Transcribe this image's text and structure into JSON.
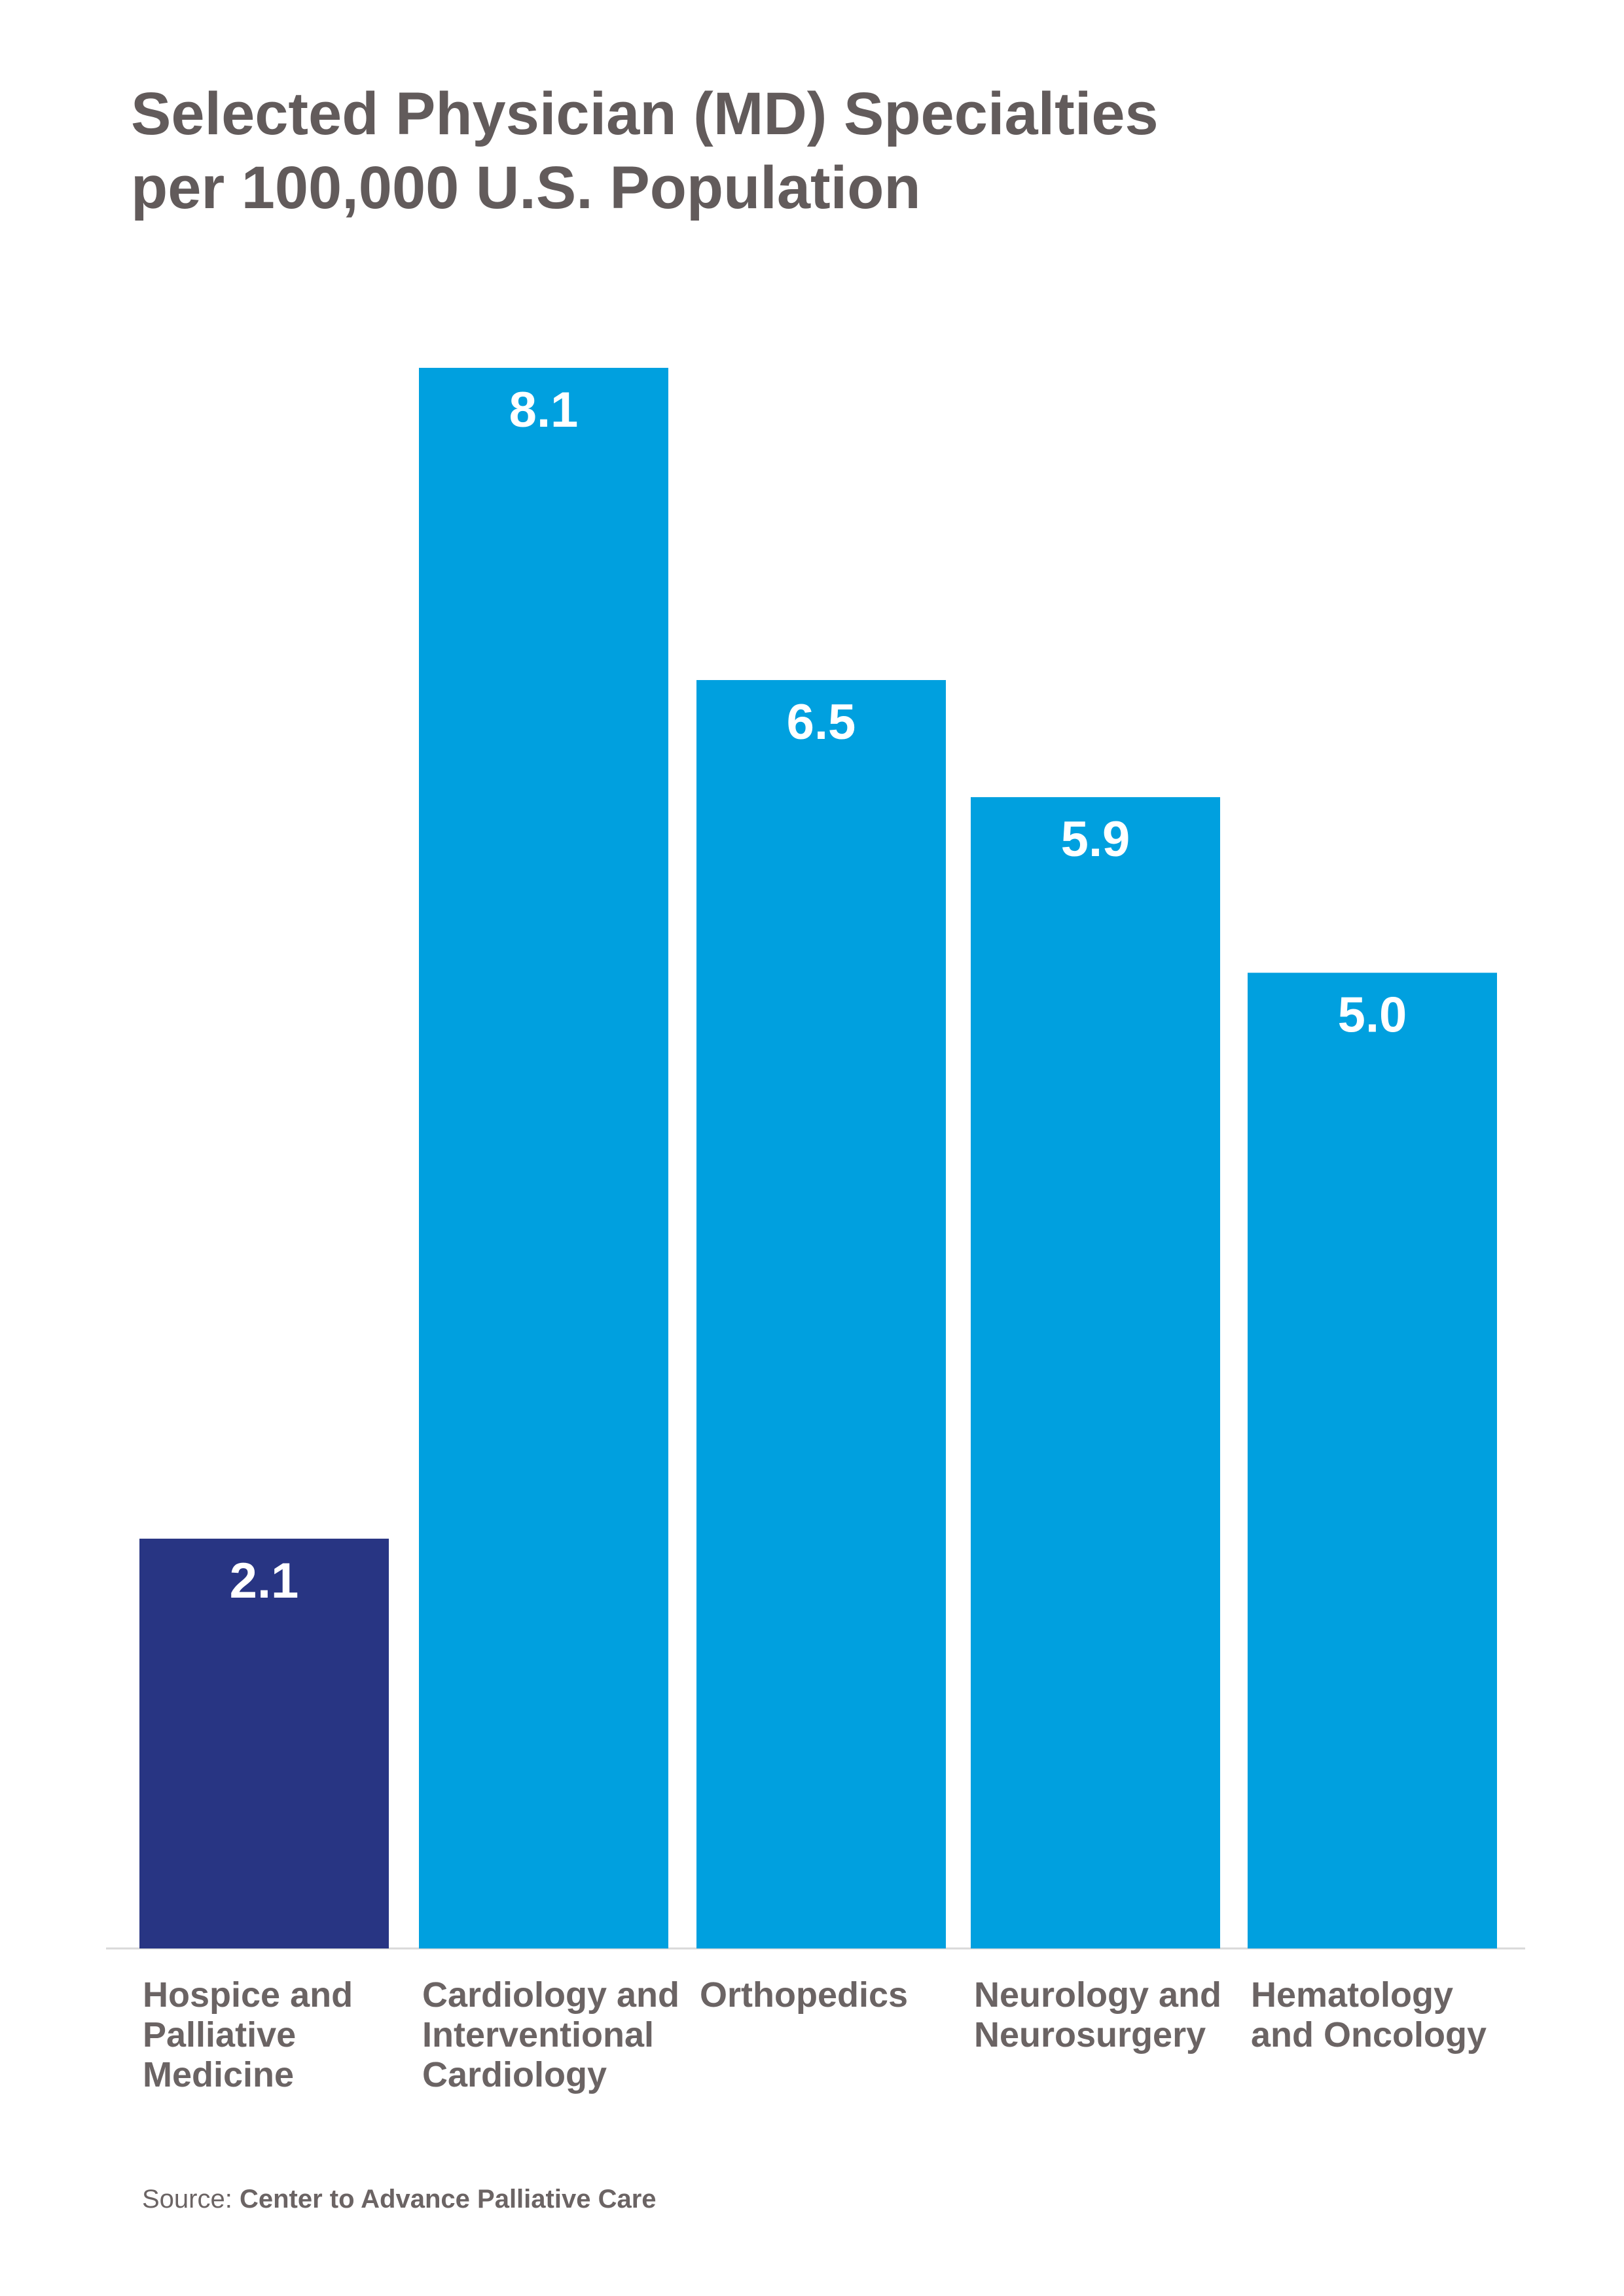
{
  "chart_data": {
    "type": "bar",
    "title_lines": [
      "Selected Physician (MD) Specialties",
      "per 100,000 U.S. Population"
    ],
    "categories": [
      [
        "Hospice and",
        "Palliative",
        "Medicine"
      ],
      [
        "Cardiology and",
        "Interventional",
        "Cardiology"
      ],
      [
        "Orthopedics"
      ],
      [
        "Neurology and",
        "Neurosurgery"
      ],
      [
        "Hematology",
        "and Oncology"
      ]
    ],
    "values": [
      2.1,
      8.1,
      6.5,
      5.9,
      5.0
    ],
    "value_labels": [
      "2.1",
      "8.1",
      "6.5",
      "5.9",
      "5.0"
    ],
    "colors": [
      "#283583",
      "#00a0df",
      "#00a0df",
      "#00a0df",
      "#00a0df"
    ],
    "ylim": [
      0,
      8.1
    ],
    "grid": false,
    "legend": "none"
  },
  "source": {
    "prefix": "Source: ",
    "name": "Center to Advance Palliative Care"
  }
}
